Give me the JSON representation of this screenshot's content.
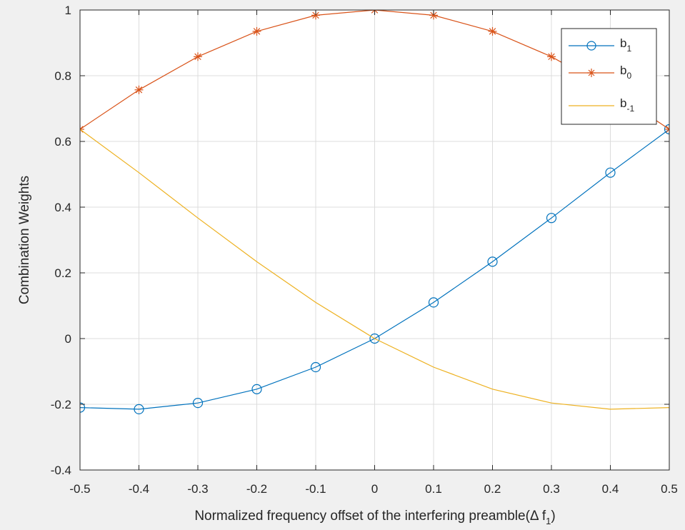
{
  "chart_data": {
    "type": "line",
    "title": "",
    "xlabel_main": "Normalized frequency offset of the interfering preamble(Δ f",
    "xlabel_sub": "1",
    "xlabel_close": ")",
    "ylabel": "Combination Weights",
    "xlim": [
      -0.5,
      0.5
    ],
    "ylim": [
      -0.4,
      1.0
    ],
    "xticks": [
      -0.5,
      -0.4,
      -0.3,
      -0.2,
      -0.1,
      0,
      0.1,
      0.2,
      0.3,
      0.4,
      0.5
    ],
    "xtick_labels": [
      "-0.5",
      "-0.4",
      "-0.3",
      "-0.2",
      "-0.1",
      "0",
      "0.1",
      "0.2",
      "0.3",
      "0.4",
      "0.5"
    ],
    "yticks": [
      -0.4,
      -0.2,
      0,
      0.2,
      0.4,
      0.6,
      0.8,
      1.0
    ],
    "ytick_labels": [
      "-0.4",
      "-0.2",
      "0",
      "0.2",
      "0.4",
      "0.6",
      "0.8",
      "1"
    ],
    "grid": true,
    "legend_position": "top-right",
    "series": [
      {
        "name": "b",
        "name_sub": "1",
        "color": "#0072BD",
        "marker": "circle",
        "x": [
          -0.5,
          -0.4,
          -0.3,
          -0.2,
          -0.1,
          0,
          0.1,
          0.2,
          0.3,
          0.4,
          0.5
        ],
        "y": [
          -0.21,
          -0.215,
          -0.196,
          -0.154,
          -0.087,
          0.0,
          0.11,
          0.234,
          0.367,
          0.505,
          0.637
        ]
      },
      {
        "name": "b",
        "name_sub": "0",
        "color": "#D95319",
        "marker": "asterisk",
        "x": [
          -0.5,
          -0.4,
          -0.3,
          -0.2,
          -0.1,
          0,
          0.1,
          0.2,
          0.3,
          0.4,
          0.5
        ],
        "y": [
          0.637,
          0.757,
          0.858,
          0.935,
          0.984,
          1.0,
          0.984,
          0.935,
          0.858,
          0.757,
          0.637
        ]
      },
      {
        "name": "b",
        "name_sub": "-1",
        "color": "#EDB120",
        "marker": "none",
        "x": [
          -0.5,
          -0.4,
          -0.3,
          -0.2,
          -0.1,
          0,
          0.1,
          0.2,
          0.3,
          0.4,
          0.5
        ],
        "y": [
          0.637,
          0.505,
          0.367,
          0.234,
          0.11,
          0.0,
          -0.087,
          -0.154,
          -0.196,
          -0.215,
          -0.21
        ]
      }
    ]
  }
}
